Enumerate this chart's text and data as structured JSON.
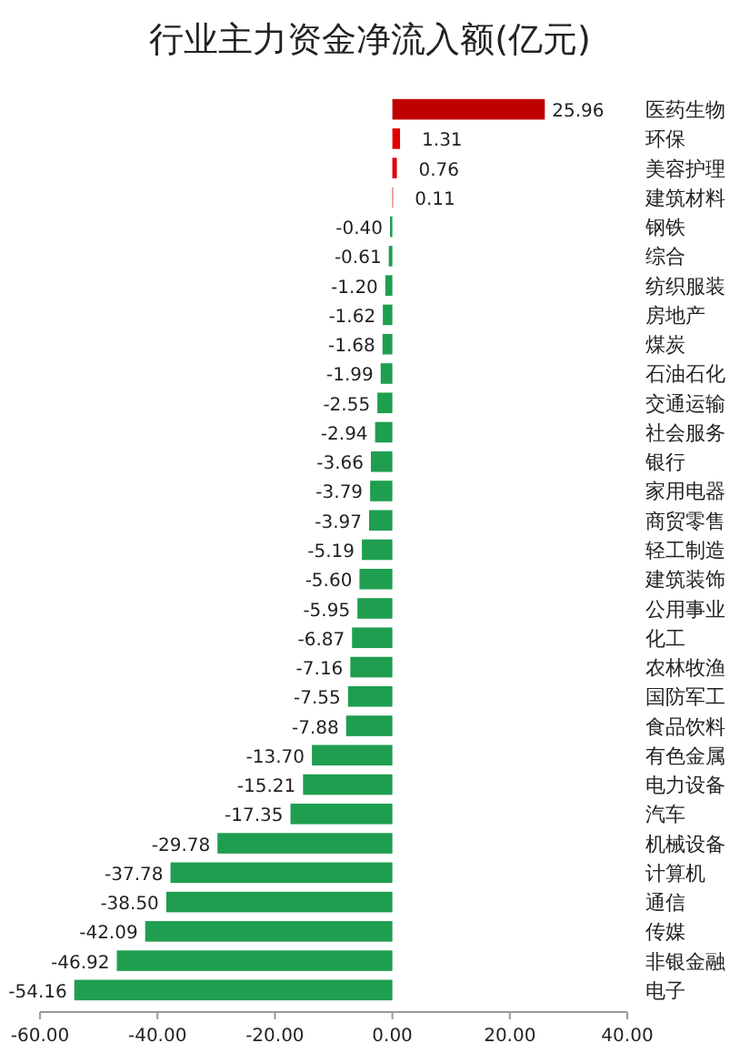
{
  "chart_data": {
    "type": "bar",
    "orientation": "horizontal",
    "title": "行业主力资金净流入额(亿元)",
    "categories": [
      "医药生物",
      "环保",
      "美容护理",
      "建筑材料",
      "钢铁",
      "综合",
      "纺织服装",
      "房地产",
      "煤炭",
      "石油石化",
      "交通运输",
      "社会服务",
      "银行",
      "家用电器",
      "商贸零售",
      "轻工制造",
      "建筑装饰",
      "公用事业",
      "化工",
      "农林牧渔",
      "国防军工",
      "食品饮料",
      "有色金属",
      "电力设备",
      "汽车",
      "机械设备",
      "计算机",
      "通信",
      "传媒",
      "非银金融",
      "电子"
    ],
    "values": [
      25.96,
      1.31,
      0.76,
      0.11,
      -0.4,
      -0.61,
      -1.2,
      -1.62,
      -1.68,
      -1.99,
      -2.55,
      -2.94,
      -3.66,
      -3.79,
      -3.97,
      -5.19,
      -5.6,
      -5.95,
      -6.87,
      -7.16,
      -7.55,
      -7.88,
      -13.7,
      -15.21,
      -17.35,
      -29.78,
      -37.78,
      -38.5,
      -42.09,
      -46.92,
      -54.16
    ],
    "colors": [
      "#c00000",
      "#e00000",
      "#e00000",
      "#e00000",
      "#1f9e50",
      "#1f9e50",
      "#1f9e50",
      "#1f9e50",
      "#1f9e50",
      "#1f9e50",
      "#1f9e50",
      "#1f9e50",
      "#1f9e50",
      "#1f9e50",
      "#1f9e50",
      "#1f9e50",
      "#1f9e50",
      "#1f9e50",
      "#1f9e50",
      "#1f9e50",
      "#1f9e50",
      "#1f9e50",
      "#1f9e50",
      "#1f9e50",
      "#1f9e50",
      "#1f9e50",
      "#1f9e50",
      "#1f9e50",
      "#1f9e50",
      "#1f9e50",
      "#1f9e50"
    ],
    "value_labels": [
      "25.96",
      "1.31",
      "0.76",
      "0.11",
      "-0.40",
      "-0.61",
      "-1.20",
      "-1.62",
      "-1.68",
      "-1.99",
      "-2.55",
      "-2.94",
      "-3.66",
      "-3.79",
      "-3.97",
      "-5.19",
      "-5.60",
      "-5.95",
      "-6.87",
      "-7.16",
      "-7.55",
      "-7.88",
      "-13.70",
      "-15.21",
      "-17.35",
      "-29.78",
      "-37.78",
      "-38.50",
      "-42.09",
      "-46.92",
      "-54.16"
    ],
    "xlim": [
      -60,
      40
    ],
    "xticks": [
      {
        "value": -60,
        "label": "-60.00"
      },
      {
        "value": -40,
        "label": "-40.00"
      },
      {
        "value": -20,
        "label": "-20.00"
      },
      {
        "value": 0,
        "label": "0.00"
      },
      {
        "value": 20,
        "label": "20.00"
      },
      {
        "value": 40,
        "label": "40.00"
      }
    ],
    "grid": false
  }
}
